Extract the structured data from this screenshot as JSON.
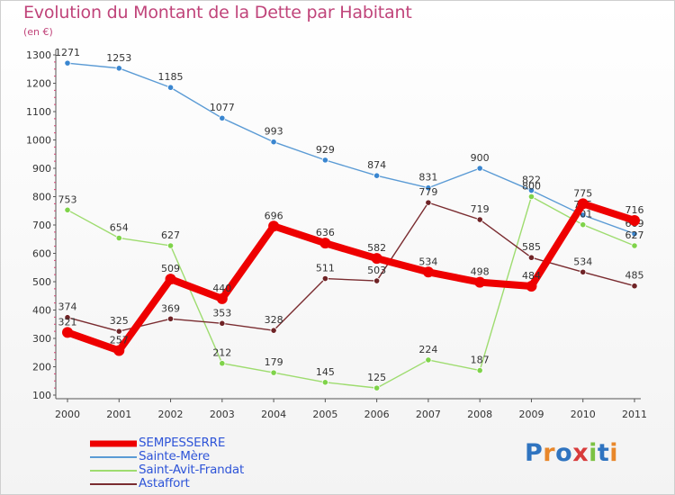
{
  "chart_data": {
    "type": "line",
    "title": "Evolution du Montant de la Dette par Habitant",
    "subtitle": "(en €)",
    "xlabel": "",
    "ylabel": "",
    "categories": [
      "2000",
      "2001",
      "2002",
      "2003",
      "2004",
      "2005",
      "2006",
      "2007",
      "2008",
      "2009",
      "2010",
      "2011"
    ],
    "ylim": [
      100,
      1300
    ],
    "yticks": [
      100,
      200,
      300,
      400,
      500,
      600,
      700,
      800,
      900,
      1000,
      1100,
      1200,
      1300
    ],
    "series": [
      {
        "name": "Sainte-Mère",
        "color": "#5b9bd5",
        "dot": "#3a86d0",
        "values": [
          1271,
          1253,
          1185,
          1077,
          993,
          929,
          874,
          831,
          900,
          822,
          735,
          669
        ]
      },
      {
        "name": "Saint-Avit-Frandat",
        "color": "#9edc6f",
        "dot": "#7fd34a",
        "values": [
          753,
          654,
          627,
          212,
          179,
          145,
          125,
          224,
          187,
          800,
          701,
          627
        ]
      },
      {
        "name": "Astaffort",
        "color": "#7a2c30",
        "dot": "#6f2326",
        "values": [
          374,
          325,
          369,
          353,
          328,
          511,
          503,
          779,
          719,
          585,
          534,
          485
        ]
      },
      {
        "name": "SEMPESSERRE",
        "color": "#ee0000",
        "dot": "#ee0000",
        "values": [
          321,
          257,
          509,
          440,
          696,
          636,
          582,
          534,
          498,
          484,
          775,
          716
        ]
      }
    ],
    "legend": [
      "SEMPESSERRE",
      "Sainte-Mère",
      "Saint-Avit-Frandat",
      "Astaffort"
    ],
    "legend_position": "bottom-left"
  },
  "brand": {
    "logo_text": "Proxiti"
  }
}
